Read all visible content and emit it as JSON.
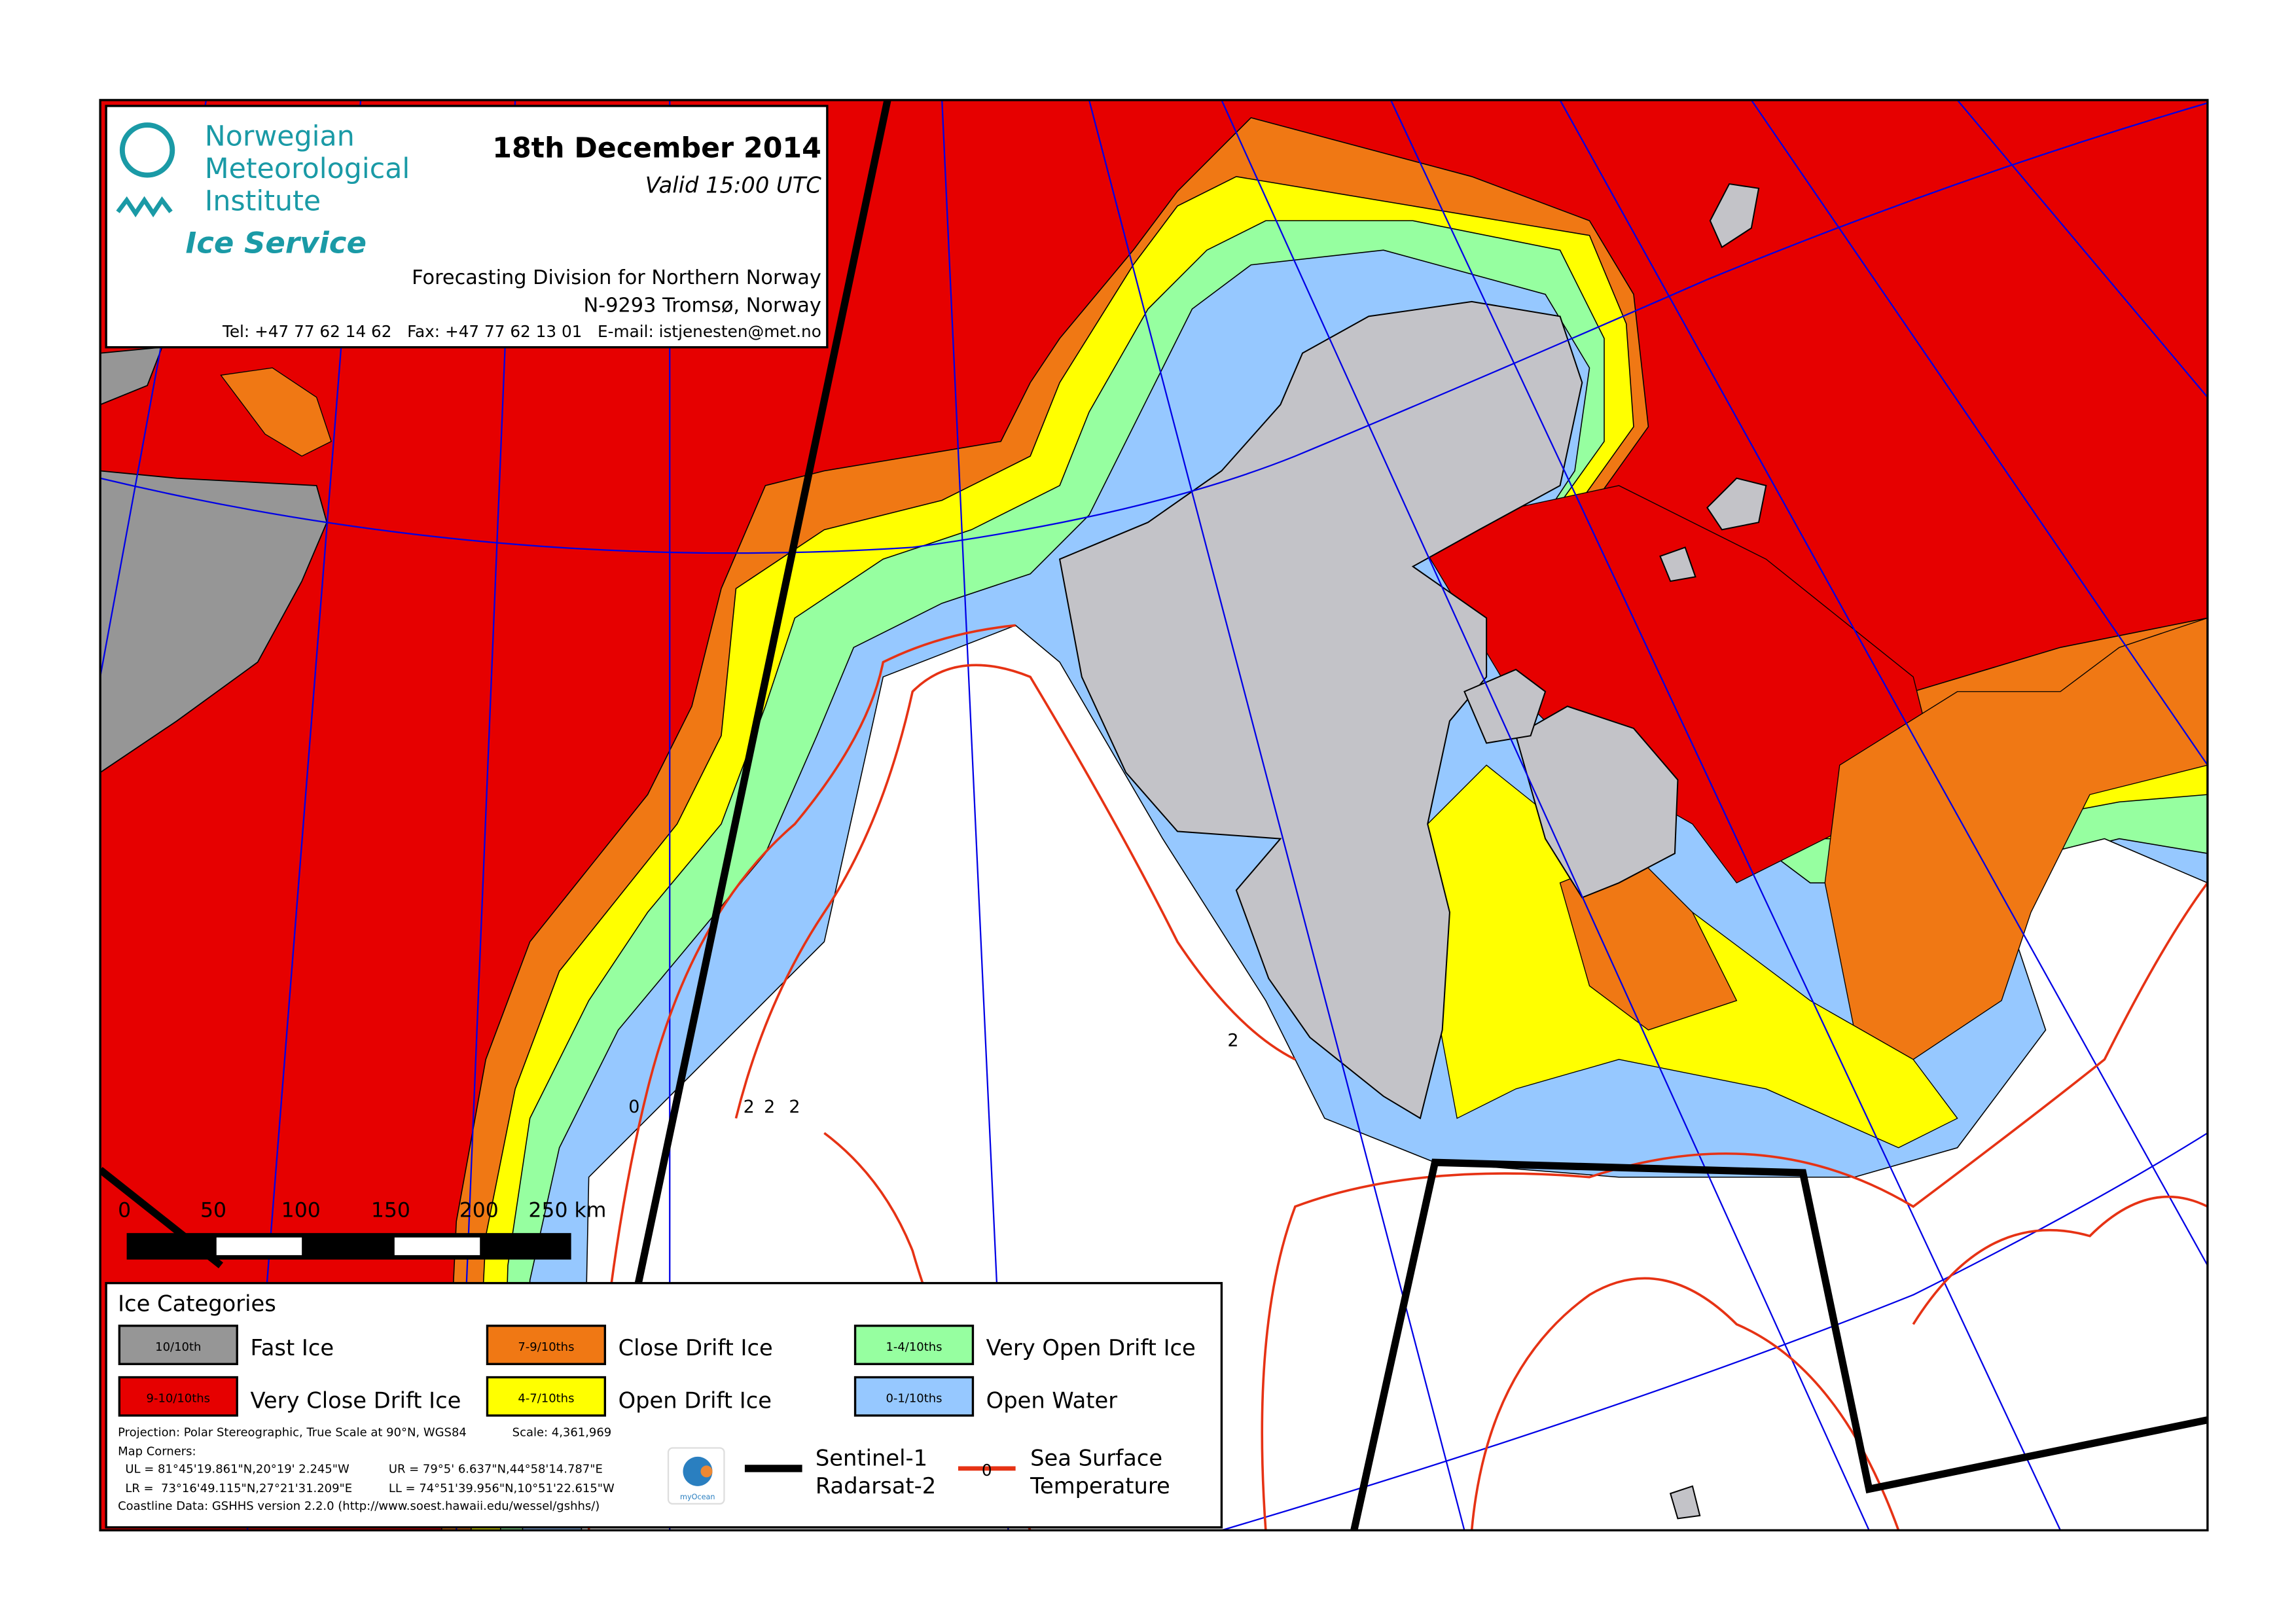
{
  "header": {
    "org_line1": "Norwegian",
    "org_line2": "Meteorological",
    "org_line3": "Institute",
    "service": "Ice Service",
    "date": "18th December 2014",
    "valid": "Valid 15:00 UTC",
    "division": "Forecasting Division for Northern Norway",
    "address": "N-9293 Tromsø, Norway",
    "contact": "Tel: +47 77 62 14 62   Fax: +47 77 62 13 01   E-mail: istjenesten@met.no",
    "brand_color": "#1a9aa6"
  },
  "scale_bar": {
    "ticks": [
      "0",
      "50",
      "100",
      "150",
      "200",
      "250 km"
    ]
  },
  "legend": {
    "title": "Ice Categories",
    "categories": [
      {
        "code": "10/10th",
        "label": "Fast Ice",
        "color": "#969696"
      },
      {
        "code": "7-9/10ths",
        "label": "Close Drift Ice",
        "color": "#f07814"
      },
      {
        "code": "1-4/10ths",
        "label": "Very Open Drift Ice",
        "color": "#96ffa0"
      },
      {
        "code": "9-10/10ths",
        "label": "Very Close Drift Ice",
        "color": "#e60000"
      },
      {
        "code": "4-7/10ths",
        "label": "Open Drift Ice",
        "color": "#ffff00"
      },
      {
        "code": "0-1/10ths",
        "label": "Open Water",
        "color": "#96c8ff"
      }
    ],
    "projection": "Projection: Polar Stereographic, True Scale at 90°N, WGS84",
    "scale": "Scale: 4,361,969",
    "map_corners_title": "Map Corners:",
    "ul": "UL = 81°45'19.861\"N,20°19' 2.245\"W",
    "ur": "UR = 79°5' 6.637\"N,44°58'14.787\"E",
    "lr": "LR =  73°16'49.115\"N,27°21'31.209\"E",
    "ll": "LL = 74°51'39.956\"N,10°51'22.615\"W",
    "coastline": "Coastline Data: GSHHS version 2.2.0 (http://www.soest.hawaii.edu/wessel/gshhs/)",
    "myocean_logo": "myOcean",
    "satellite_line1": "Sentinel-1",
    "satellite_line2": "Radarsat-2",
    "sst_symbol": "0",
    "sst_line1": "Sea Surface",
    "sst_line2": "Temperature",
    "sst_color": "#e63214"
  },
  "map": {
    "land_color": "#c3c3c8",
    "sst_labels": [
      "0",
      "2",
      "2",
      "2",
      "2"
    ]
  }
}
